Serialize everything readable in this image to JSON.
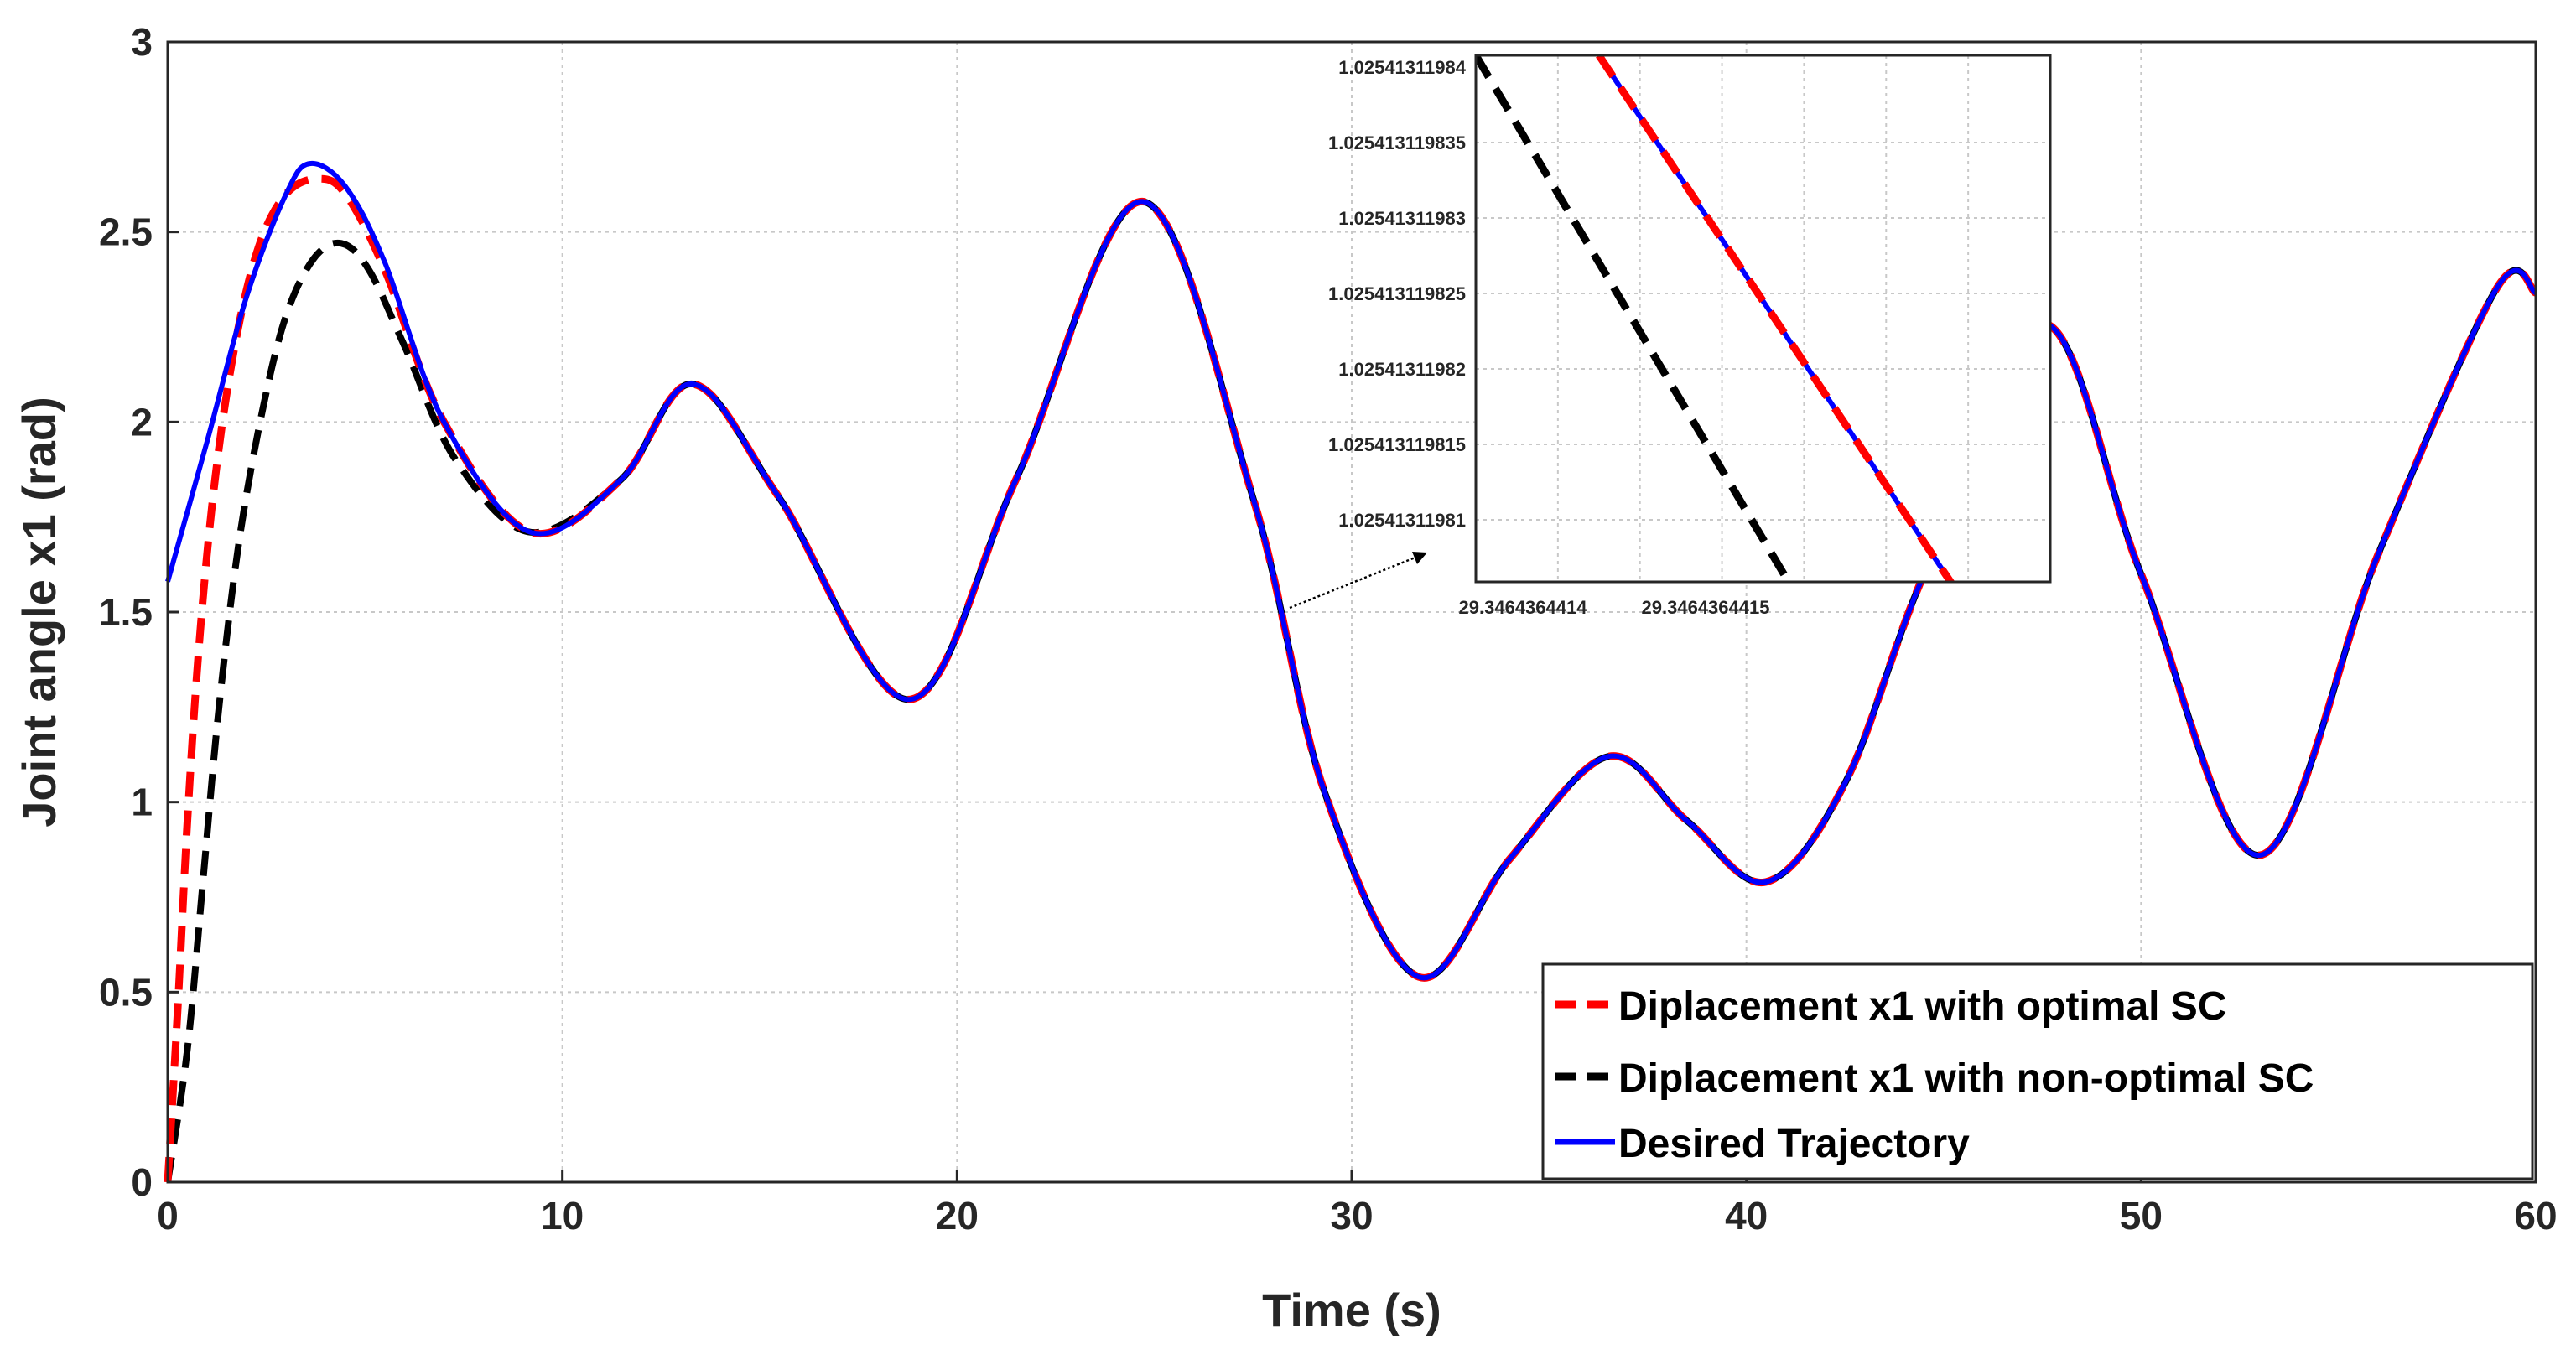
{
  "chart_data": {
    "type": "line",
    "xlabel": "Time (s)",
    "ylabel": "Joint  angle  x1 (rad)",
    "xlim": [
      0,
      60
    ],
    "ylim": [
      0,
      3
    ],
    "grid": true,
    "xticks": [
      "0",
      "10",
      "20",
      "30",
      "40",
      "50",
      "60"
    ],
    "yticks": [
      "0",
      "0.5",
      "1",
      "1.5",
      "2",
      "2.5",
      "3"
    ],
    "legend_position": "bottom-right",
    "series": [
      {
        "name": "Diplacement x1 with optimal SC",
        "color": "#ff0000",
        "style": "dashed",
        "x": [
          0,
          0.25,
          0.5,
          0.8,
          1.2,
          1.7,
          2.3,
          3.0,
          3.8,
          4.5,
          5.5,
          7.0,
          9.2,
          11.5,
          13.3,
          15.5,
          18.8,
          21.5,
          24.7,
          27.5,
          29.3,
          31.7,
          34.0,
          36.5,
          38.5,
          40.5,
          42.5,
          44.5,
          47.5,
          50.0,
          53.0,
          56.0,
          59.0,
          60
        ],
        "y": [
          0.0,
          0.45,
          0.95,
          1.42,
          1.85,
          2.2,
          2.46,
          2.6,
          2.64,
          2.6,
          2.4,
          2.0,
          1.71,
          1.85,
          2.1,
          1.8,
          1.27,
          1.85,
          2.58,
          1.8,
          1.03,
          0.54,
          0.85,
          1.12,
          0.95,
          0.79,
          1.05,
          1.6,
          2.26,
          1.6,
          0.86,
          1.65,
          2.35,
          2.34
        ]
      },
      {
        "name": "Diplacement x1 with non-optimal SC",
        "color": "#000000",
        "style": "dashed",
        "x": [
          0,
          0.5,
          0.9,
          1.3,
          1.8,
          2.4,
          3.0,
          3.7,
          4.4,
          5.1,
          6.0,
          7.3,
          9.2,
          11.5,
          13.3,
          15.5,
          18.8,
          21.5,
          24.7,
          27.5,
          29.3,
          31.7,
          34.0,
          36.5,
          38.5,
          40.5,
          42.5,
          44.5,
          47.5,
          50.0,
          53.0,
          56.0,
          59.0,
          60
        ],
        "y": [
          0.0,
          0.35,
          0.8,
          1.25,
          1.68,
          2.03,
          2.28,
          2.43,
          2.47,
          2.4,
          2.2,
          1.9,
          1.71,
          1.85,
          2.1,
          1.8,
          1.27,
          1.85,
          2.58,
          1.8,
          1.03,
          0.54,
          0.85,
          1.12,
          0.95,
          0.79,
          1.05,
          1.6,
          2.26,
          1.6,
          0.86,
          1.65,
          2.35,
          2.34
        ]
      },
      {
        "name": "Desired Trajectory",
        "color": "#0000ff",
        "style": "solid",
        "x": [
          0,
          1.0,
          2.0,
          3.0,
          3.6,
          4.5,
          5.5,
          7.0,
          9.2,
          11.5,
          13.3,
          15.5,
          18.8,
          21.5,
          24.7,
          27.5,
          29.3,
          31.7,
          34.0,
          36.5,
          38.5,
          40.5,
          42.5,
          44.5,
          47.5,
          50.0,
          53.0,
          56.0,
          59.0,
          60
        ],
        "y": [
          1.58,
          1.95,
          2.33,
          2.6,
          2.68,
          2.62,
          2.42,
          2.0,
          1.71,
          1.85,
          2.1,
          1.8,
          1.27,
          1.85,
          2.58,
          1.8,
          1.03,
          0.54,
          0.85,
          1.12,
          0.95,
          0.79,
          1.05,
          1.6,
          2.26,
          1.6,
          0.86,
          1.65,
          2.35,
          2.34
        ]
      }
    ],
    "inset": {
      "yticks": [
        "1.02541311984",
        "1.025413119835",
        "1.02541311983",
        "1.025413119825",
        "1.02541311982",
        "1.025413119815",
        "1.02541311981"
      ],
      "xticks": [
        "29.3464364414",
        "29.3464364415"
      ],
      "lines": [
        {
          "name": "optimal",
          "color": "#ff0000",
          "x": [
            0.3,
            1.2
          ],
          "y": [
            1.0,
            -0.05
          ]
        },
        {
          "name": "non-optimal",
          "color": "#000000",
          "x": [
            0.0,
            0.8
          ],
          "y": [
            1.0,
            -0.05
          ]
        },
        {
          "name": "desired",
          "color": "#0000ff",
          "x": [
            0.3,
            1.2
          ],
          "y": [
            1.0,
            -0.05
          ]
        }
      ]
    }
  }
}
